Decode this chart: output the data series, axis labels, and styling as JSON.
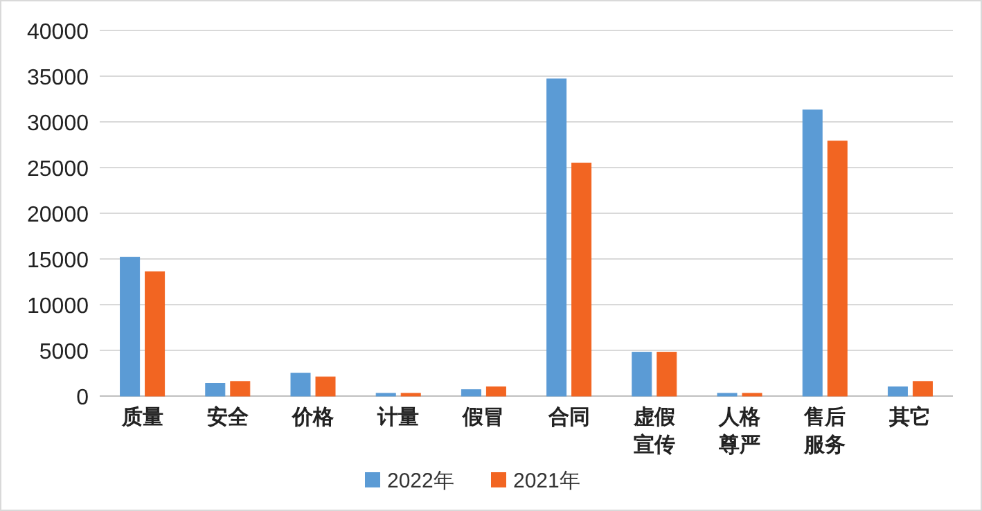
{
  "chart_data": {
    "type": "bar",
    "categories": [
      "质量",
      "安全",
      "价格",
      "计量",
      "假冒",
      "合同",
      "虚假宣传",
      "人格尊严",
      "售后服务",
      "其它"
    ],
    "series": [
      {
        "name": "2022年",
        "color": "#5b9bd5",
        "values": [
          15200,
          1400,
          2500,
          300,
          700,
          34700,
          4800,
          300,
          31300,
          1000
        ]
      },
      {
        "name": "2021年",
        "color": "#f26522",
        "values": [
          13600,
          1600,
          2100,
          300,
          1000,
          25500,
          4800,
          300,
          27900,
          1600
        ]
      }
    ],
    "ylim": [
      0,
      40000
    ],
    "yticks": [
      0,
      5000,
      10000,
      15000,
      20000,
      25000,
      30000,
      35000,
      40000
    ],
    "grid": "y",
    "legend": "bottom"
  }
}
